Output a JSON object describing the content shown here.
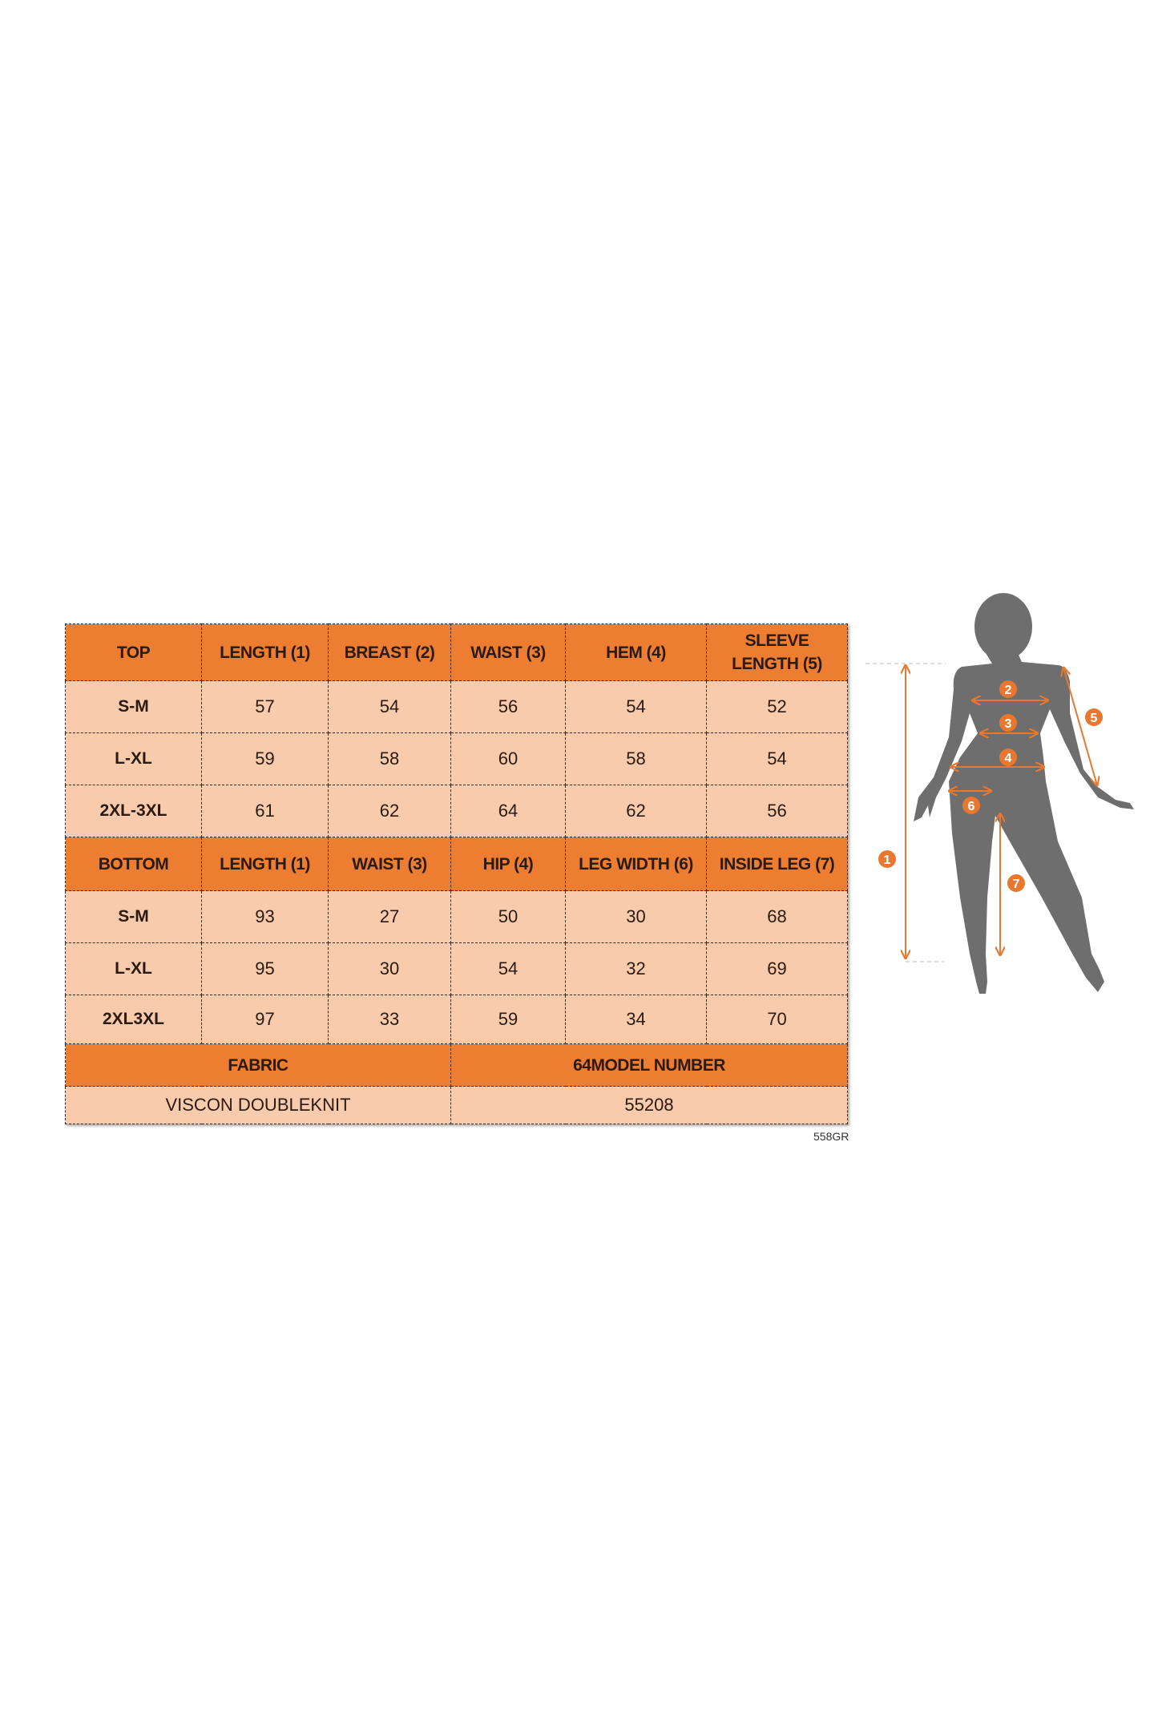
{
  "colors": {
    "header": "#ed7d31",
    "cell": "#f8cbad",
    "silhouette": "#6e6e6e",
    "marker": "#e8782f"
  },
  "top": {
    "headers": [
      "TOP",
      "LENGTH (1)",
      "BREAST (2)",
      "WAIST (3)",
      "HEM (4)",
      "SLEEVE LENGTH (5)"
    ],
    "rows": [
      [
        "S-M",
        "57",
        "54",
        "56",
        "54",
        "52"
      ],
      [
        "L-XL",
        "59",
        "58",
        "60",
        "58",
        "54"
      ],
      [
        "2XL-3XL",
        "61",
        "62",
        "64",
        "62",
        "56"
      ]
    ]
  },
  "bottom": {
    "headers": [
      "BOTTOM",
      "LENGTH (1)",
      "WAIST (3)",
      "HIP (4)",
      "LEG WIDTH (6)",
      "INSIDE LEG (7)"
    ],
    "rows": [
      [
        "S-M",
        "93",
        "27",
        "50",
        "30",
        "68"
      ],
      [
        "L-XL",
        "95",
        "30",
        "54",
        "32",
        "69"
      ],
      [
        "2XL3XL",
        "97",
        "33",
        "59",
        "34",
        "70"
      ]
    ]
  },
  "footer": {
    "fabric_label": "FABRIC",
    "model_label": "64MODEL NUMBER",
    "fabric_value": "VISCON DOUBLEKNIT",
    "model_value": "55208"
  },
  "code": "558GR",
  "figure": {
    "markers": [
      "1",
      "2",
      "3",
      "4",
      "5",
      "6",
      "7"
    ]
  }
}
